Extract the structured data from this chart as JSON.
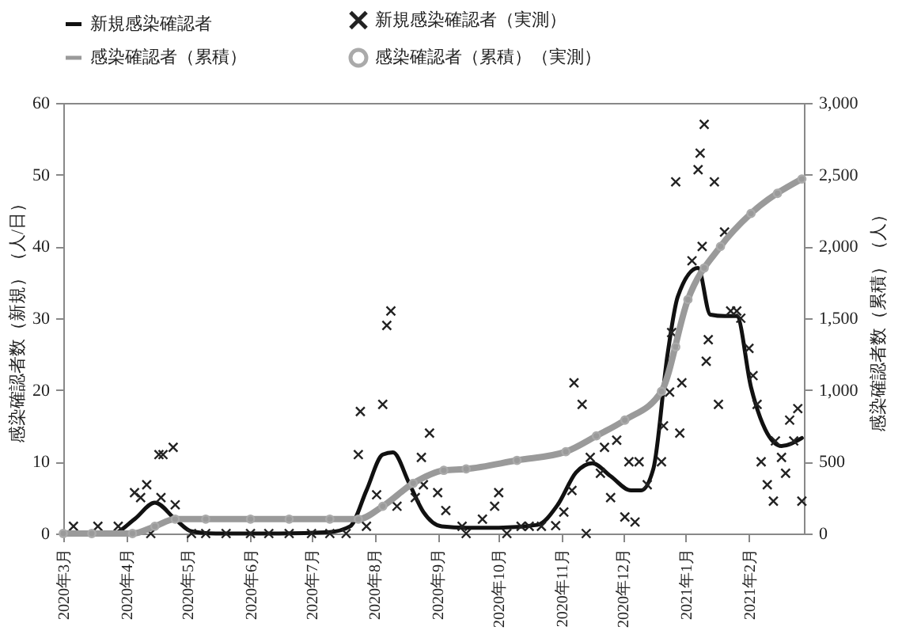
{
  "chart_data": {
    "type": "line",
    "ylabel": "感染確認者数（新規）（人/日）",
    "y2label": "感染確認者数（累積）（人）",
    "xlim": [
      "2020-03-01",
      "2021-02-28"
    ],
    "xticks": [
      {
        "value": "2020-03-01",
        "label": "2020年3月"
      },
      {
        "value": "2020-04-01",
        "label": "2020年4月"
      },
      {
        "value": "2020-05-01",
        "label": "2020年5月"
      },
      {
        "value": "2020-06-01",
        "label": "2020年6月"
      },
      {
        "value": "2020-07-01",
        "label": "2020年7月"
      },
      {
        "value": "2020-08-01",
        "label": "2020年8月"
      },
      {
        "value": "2020-09-01",
        "label": "2020年9月"
      },
      {
        "value": "2020-10-01",
        "label": "2020年10月"
      },
      {
        "value": "2020-11-01",
        "label": "2020年11月"
      },
      {
        "value": "2020-12-01",
        "label": "2020年12月"
      },
      {
        "value": "2021-01-01",
        "label": "2021年1月"
      },
      {
        "value": "2021-02-01",
        "label": "2021年2月"
      }
    ],
    "ylim": [
      0,
      60
    ],
    "yticks": [
      0,
      10,
      20,
      30,
      40,
      50,
      60
    ],
    "y2lim": [
      0,
      3000
    ],
    "y2ticks": [
      0,
      500,
      {
        "value": 1000,
        "label": "1,000"
      },
      {
        "value": 1500,
        "label": "1,500"
      },
      {
        "value": 2000,
        "label": "2,000"
      },
      {
        "value": 2500,
        "label": "2,500"
      },
      {
        "value": 3000,
        "label": "3,000"
      }
    ],
    "legend": "top",
    "grid": false,
    "series": [
      {
        "name": "新規感染確認者",
        "type": "line",
        "color": "#111111",
        "x": [
          "2020-03-01",
          "2020-03-25",
          "2020-04-05",
          "2020-04-15",
          "2020-04-25",
          "2020-05-03",
          "2020-05-15",
          "2020-06-15",
          "2020-07-10",
          "2020-07-20",
          "2020-07-28",
          "2020-08-05",
          "2020-08-10",
          "2020-08-18",
          "2020-08-25",
          "2020-09-03",
          "2020-09-15",
          "2020-10-01",
          "2020-10-20",
          "2020-10-30",
          "2020-11-08",
          "2020-11-16",
          "2020-11-25",
          "2020-12-05",
          "2020-12-10",
          "2020-12-16",
          "2020-12-23",
          "2020-12-28",
          "2021-01-07",
          "2021-01-13",
          "2021-01-20",
          "2021-01-26",
          "2021-02-02",
          "2021-02-09",
          "2021-02-17",
          "2021-02-27"
        ],
        "values": [
          0,
          0,
          2,
          4.3,
          2,
          0.3,
          0,
          0,
          0.2,
          1,
          6,
          11,
          11.3,
          7,
          3,
          1,
          0.8,
          0.8,
          1.2,
          4,
          8.5,
          9.8,
          8,
          6,
          6,
          9,
          25,
          33,
          37,
          30.5,
          30.3,
          30.3,
          20.4,
          14.5,
          12.2,
          13.3
        ]
      },
      {
        "name": "新規感染確認者（実測）",
        "type": "scatter",
        "marker": "cross",
        "color": "#222222",
        "x": [
          "2020-03-06",
          "2020-03-18",
          "2020-03-28",
          "2020-04-05",
          "2020-04-08",
          "2020-04-11",
          "2020-04-13",
          "2020-04-17",
          "2020-04-18",
          "2020-04-19",
          "2020-04-24",
          "2020-04-25",
          "2020-05-03",
          "2020-05-10",
          "2020-05-20",
          "2020-06-01",
          "2020-06-10",
          "2020-06-20",
          "2020-07-01",
          "2020-07-10",
          "2020-07-18",
          "2020-07-24",
          "2020-07-25",
          "2020-07-28",
          "2020-08-02",
          "2020-08-05",
          "2020-08-07",
          "2020-08-09",
          "2020-08-12",
          "2020-08-21",
          "2020-08-24",
          "2020-08-25",
          "2020-08-28",
          "2020-09-01",
          "2020-09-05",
          "2020-09-13",
          "2020-09-15",
          "2020-09-23",
          "2020-09-29",
          "2020-10-01",
          "2020-10-05",
          "2020-10-12",
          "2020-10-16",
          "2020-10-22",
          "2020-10-29",
          "2020-11-02",
          "2020-11-06",
          "2020-11-07",
          "2020-11-11",
          "2020-11-13",
          "2020-11-15",
          "2020-11-20",
          "2020-11-22",
          "2020-11-25",
          "2020-11-28",
          "2020-12-02",
          "2020-12-04",
          "2020-12-07",
          "2020-12-09",
          "2020-12-13",
          "2020-12-20",
          "2020-12-21",
          "2020-12-24",
          "2020-12-25",
          "2020-12-27",
          "2020-12-29",
          "2020-12-30",
          "2021-01-04",
          "2021-01-07",
          "2021-01-08",
          "2021-01-09",
          "2021-01-10",
          "2021-01-11",
          "2021-01-12",
          "2021-01-15",
          "2021-01-17",
          "2021-01-20",
          "2021-01-23",
          "2021-01-26",
          "2021-01-28",
          "2021-02-01",
          "2021-02-03",
          "2021-02-05",
          "2021-02-07",
          "2021-02-10",
          "2021-02-13",
          "2021-02-14",
          "2021-02-17",
          "2021-02-19",
          "2021-02-21",
          "2021-02-23",
          "2021-02-25",
          "2021-02-27"
        ],
        "values": [
          1,
          1,
          1,
          5.7,
          5,
          6.8,
          0,
          11,
          5,
          11,
          12,
          4,
          0,
          0,
          0,
          0,
          0,
          0,
          0,
          0,
          0,
          11,
          17,
          1,
          5.4,
          18,
          29,
          31,
          3.8,
          5,
          10.6,
          6.8,
          14,
          5.7,
          3.2,
          1,
          0,
          2,
          3.8,
          5.7,
          0,
          1,
          1,
          1,
          1.1,
          3,
          6,
          21,
          18,
          0,
          10.6,
          8.4,
          12,
          5,
          13,
          2.3,
          10,
          1.6,
          10,
          6.8,
          10,
          15,
          19.7,
          28,
          49,
          14,
          21,
          38,
          50.7,
          53,
          40,
          57,
          24,
          27,
          49,
          18,
          42,
          31,
          31,
          30,
          25.8,
          22,
          18,
          10,
          6.8,
          4.5,
          12.9,
          10.6,
          8.4,
          15.8,
          12.9,
          17.4,
          4.5
        ]
      },
      {
        "name": "感染確認者（累積）",
        "type": "line",
        "axis": "y2",
        "color": "#9a9a9a",
        "x": [
          "2020-03-01",
          "2020-04-04",
          "2020-04-15",
          "2020-04-25",
          "2020-06-01",
          "2020-07-24",
          "2020-08-05",
          "2020-08-20",
          "2020-09-04",
          "2020-09-15",
          "2020-10-10",
          "2020-11-03",
          "2020-11-18",
          "2020-12-02",
          "2020-12-20",
          "2021-01-02",
          "2021-01-18",
          "2021-02-02",
          "2021-02-27"
        ],
        "values": [
          0,
          0,
          50,
          100,
          100,
          100,
          190,
          350,
          440,
          450,
          510,
          570,
          680,
          790,
          990,
          1630,
          2000,
          2230,
          2470
        ]
      },
      {
        "name": "感染確認者（累積）（実測）",
        "type": "scatter",
        "marker": "circle",
        "axis": "y2",
        "color": "#aaaaaa",
        "x": [
          "2020-03-01",
          "2020-03-15",
          "2020-04-04",
          "2020-04-15",
          "2020-04-25",
          "2020-05-10",
          "2020-06-01",
          "2020-06-20",
          "2020-07-10",
          "2020-07-24",
          "2020-08-05",
          "2020-08-20",
          "2020-09-04",
          "2020-09-15",
          "2020-10-10",
          "2020-11-03",
          "2020-11-18",
          "2020-12-02",
          "2020-12-20",
          "2020-12-27",
          "2021-01-02",
          "2021-01-10",
          "2021-01-18",
          "2021-02-02",
          "2021-02-15",
          "2021-02-27"
        ],
        "values": [
          0,
          0,
          0,
          50,
          100,
          100,
          100,
          100,
          100,
          100,
          190,
          350,
          440,
          450,
          510,
          570,
          680,
          790,
          990,
          1300,
          1630,
          1850,
          2000,
          2230,
          2370,
          2470
        ]
      }
    ]
  }
}
